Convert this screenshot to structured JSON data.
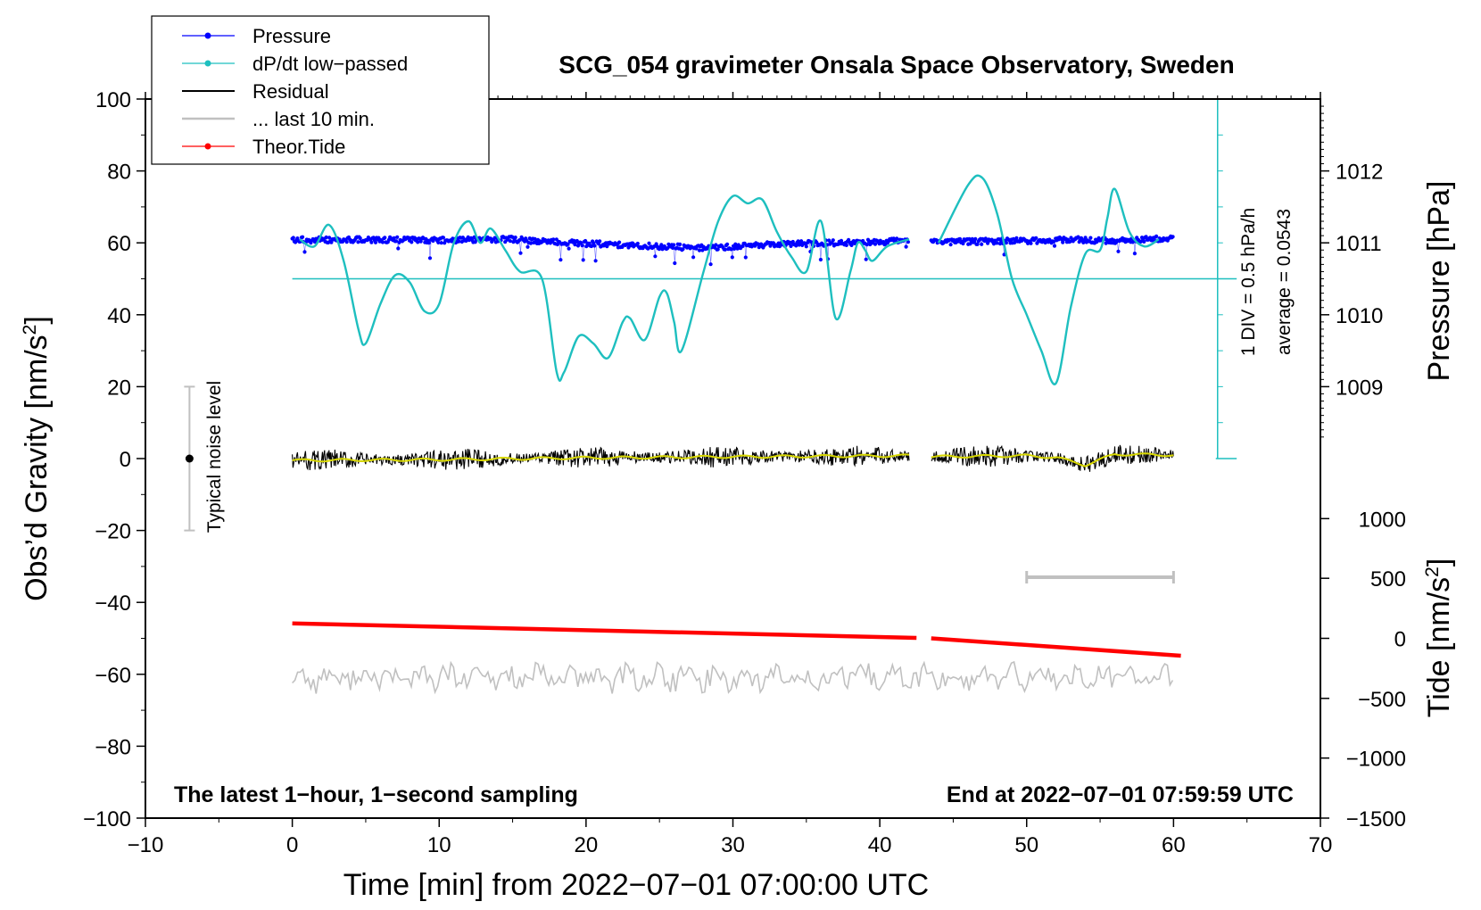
{
  "chart_data": {
    "type": "line",
    "title": "SCG_054 gravimeter Onsala Space Observatory, Sweden",
    "xlabel": "Time [min] from 2022−07−01 07:00:00 UTC",
    "ylabel_left": "Obs’d Gravity [nm/s",
    "ylabel_left_sup": "2",
    "ylabel_left_end": "]",
    "ylabel_right_pressure": "Pressure [hPa]",
    "ylabel_right_tide": "Tide [nm/s",
    "ylabel_right_tide_sup": "2",
    "ylabel_right_tide_end": "]",
    "xlim": [
      -10,
      70
    ],
    "ylim": [
      -100,
      100
    ],
    "x_ticks": [
      -10,
      0,
      10,
      20,
      30,
      40,
      50,
      60,
      70
    ],
    "x_tick_labels": [
      "−10",
      "0",
      "10",
      "20",
      "30",
      "40",
      "50",
      "60",
      "70"
    ],
    "y_ticks": [
      -100,
      -80,
      -60,
      -40,
      -20,
      0,
      20,
      40,
      60,
      80,
      100
    ],
    "y_tick_labels": [
      "−100",
      "−80",
      "−60",
      "−40",
      "−20",
      "0",
      "20",
      "40",
      "60",
      "80",
      "100"
    ],
    "pressure_axis": {
      "ticks": [
        1009,
        1010,
        1011,
        1012
      ],
      "gravity_equiv": [
        20,
        40,
        60,
        80
      ]
    },
    "tide_axis": {
      "ticks": [
        1000,
        500,
        0,
        -500,
        -1000,
        -1500
      ],
      "tick_labels": [
        "1000",
        "500",
        "0",
        "−500",
        "−1000",
        "−1500"
      ],
      "gravity_equiv": [
        -16.7,
        -33.3,
        -50,
        -66.7,
        -83.3,
        -100
      ]
    },
    "legend": [
      {
        "label": "Pressure",
        "color": "#0000ff",
        "marker": true
      },
      {
        "label": "dP/dt low−passed",
        "color": "#1ebfbf",
        "marker": true
      },
      {
        "label": "Residual",
        "color": "#000000",
        "marker": false
      },
      {
        "label": "... last 10 min.",
        "color": "#c0c0c0",
        "marker": false
      },
      {
        "label": "Theor.Tide",
        "color": "#ff0000",
        "marker": true
      }
    ],
    "series": {
      "pressure": {
        "name": "Pressure",
        "color": "#0000ff",
        "unit": "gravity-scaled",
        "segments": [
          [
            [
              0,
              60.8
            ],
            [
              5,
              60.9
            ],
            [
              10,
              60.7
            ],
            [
              15,
              61.0
            ],
            [
              20,
              59.8
            ],
            [
              25,
              59.0
            ],
            [
              28,
              58.6
            ],
            [
              32,
              59.4
            ],
            [
              36,
              59.9
            ],
            [
              40,
              60.2
            ],
            [
              42,
              60.8
            ]
          ],
          [
            [
              43.5,
              60.2
            ],
            [
              47,
              60.4
            ],
            [
              50,
              60.6
            ],
            [
              53,
              60.9
            ],
            [
              56,
              60.6
            ],
            [
              58,
              61.0
            ],
            [
              60,
              61.3
            ]
          ]
        ]
      },
      "dpdt": {
        "name": "dP/dt low−passed",
        "color": "#1ebfbf",
        "baseline": 50,
        "div_label": "1 DIV = 0.5 hPa/h",
        "average_label": "average = 0.0543",
        "segments": [
          [
            [
              0.5,
              61
            ],
            [
              1.5,
              59
            ],
            [
              2.5,
              65
            ],
            [
              3.5,
              55
            ],
            [
              4.5,
              36
            ],
            [
              5,
              32
            ],
            [
              6,
              43
            ],
            [
              7,
              51
            ],
            [
              8,
              49
            ],
            [
              9,
              41
            ],
            [
              10,
              43
            ],
            [
              11,
              60
            ],
            [
              12,
              66
            ],
            [
              12.8,
              60
            ],
            [
              13.5,
              64
            ],
            [
              14.5,
              58
            ],
            [
              15.5,
              52
            ],
            [
              17,
              50
            ],
            [
              18,
              24
            ],
            [
              18.5,
              24
            ],
            [
              19.5,
              34
            ],
            [
              20.5,
              32
            ],
            [
              21.5,
              28
            ],
            [
              22.5,
              38
            ],
            [
              23,
              39
            ],
            [
              24,
              33
            ],
            [
              25,
              45
            ],
            [
              25.5,
              46
            ],
            [
              26,
              38
            ],
            [
              26.5,
              30
            ],
            [
              28,
              52
            ],
            [
              29,
              66
            ],
            [
              30,
              73
            ],
            [
              31,
              71
            ],
            [
              32,
              72
            ],
            [
              33,
              63
            ],
            [
              34,
              56
            ],
            [
              35,
              52
            ],
            [
              36,
              66
            ],
            [
              37,
              39
            ],
            [
              38,
              52
            ],
            [
              38.5,
              60
            ],
            [
              39,
              58
            ],
            [
              39.5,
              55
            ],
            [
              40.5,
              59
            ],
            [
              42,
              61
            ]
          ],
          [
            [
              44,
              60
            ],
            [
              46,
              76
            ],
            [
              47,
              78
            ],
            [
              48,
              68
            ],
            [
              49,
              50
            ],
            [
              50,
              40
            ],
            [
              51,
              30
            ],
            [
              52,
              21
            ],
            [
              53,
              42
            ],
            [
              54,
              57
            ],
            [
              55,
              58
            ],
            [
              55.5,
              67
            ],
            [
              56,
              75
            ],
            [
              57,
              63
            ],
            [
              58,
              59
            ],
            [
              59,
              61
            ]
          ]
        ]
      },
      "residual": {
        "name": "Residual",
        "color": "#000000",
        "unit": "nm/s2",
        "segments": [
          [
            [
              0,
              -0.5
            ],
            [
              10,
              -0.3
            ],
            [
              20,
              0.2
            ],
            [
              30,
              0.5
            ],
            [
              42,
              0.8
            ]
          ],
          [
            [
              43.5,
              0.5
            ],
            [
              50,
              0.8
            ],
            [
              52,
              0.3
            ],
            [
              54,
              -1.8
            ],
            [
              56,
              1.2
            ],
            [
              60,
              1.0
            ]
          ]
        ]
      },
      "last_10_min": {
        "name": "... last 10 min.",
        "color": "#c0c0c0",
        "x_range": [
          50,
          60
        ],
        "y": -33
      },
      "theor_tide": {
        "name": "Theor.Tide",
        "color": "#ff0000",
        "unit": "nm/s2",
        "segments": [
          [
            [
              0,
              125
            ],
            [
              42.5,
              4
            ]
          ],
          [
            [
              43.5,
              0
            ],
            [
              60.5,
              -145
            ]
          ]
        ]
      },
      "residual_grey_trace": {
        "color": "#c0c0c0",
        "mean": -61,
        "segments": [
          [
            0,
            60
          ]
        ]
      }
    },
    "noise_level": {
      "label": "Typical noise level",
      "x": -7,
      "y": 0,
      "range": [
        -20,
        20
      ]
    },
    "annotation_left": "The latest 1−hour, 1−second sampling",
    "annotation_right": "End at 2022−07−01 07:59:59 UTC"
  }
}
